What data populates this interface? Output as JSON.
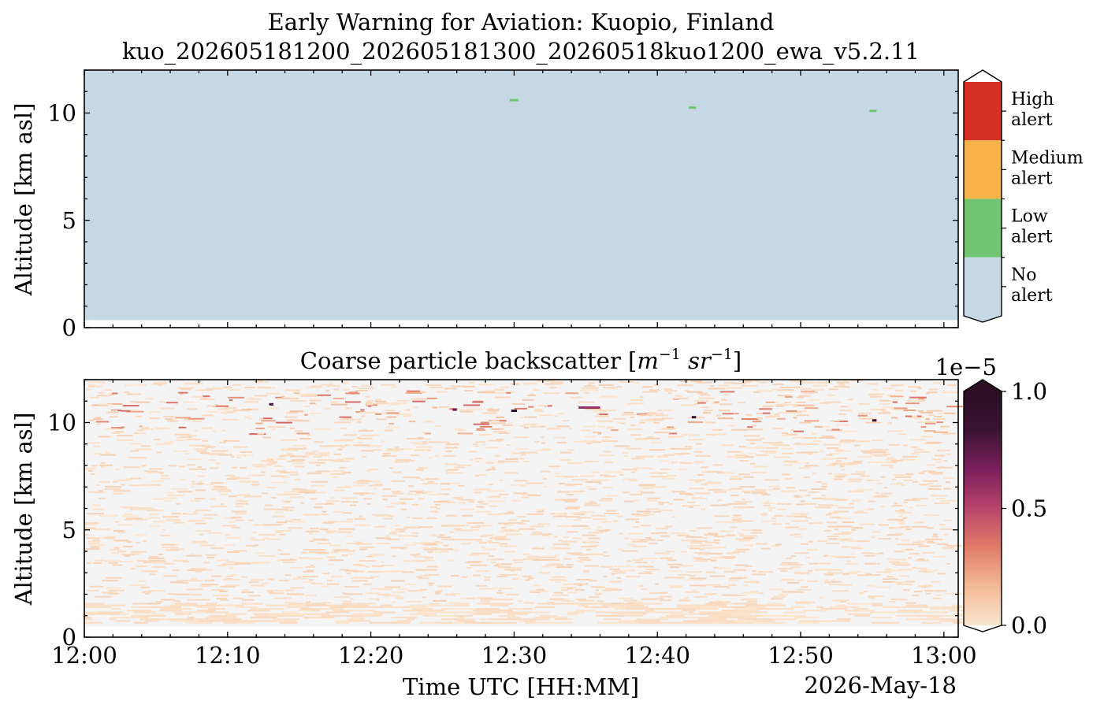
{
  "figure": {
    "title_line1": "Early Warning for Aviation: Kuopio, Finland",
    "title_line2": "kuo_202605181200_202605181300_20260518kuo1200_ewa_v5.2.11",
    "date_label": "2026-May-18"
  },
  "chart_data": [
    {
      "type": "heatmap",
      "name": "alert-panel",
      "ylabel": "Altitude [km asl]",
      "xlim_minutes": [
        0,
        61
      ],
      "ylim_km": [
        0,
        12
      ],
      "yticks": [
        {
          "v": 0,
          "label": "0"
        },
        {
          "v": 5,
          "label": "5"
        },
        {
          "v": 10,
          "label": "10"
        }
      ],
      "background_level": "No alert",
      "data_bottom_km": 0.35,
      "low_alert_segments": [
        {
          "time": "12:30",
          "start_min": 29.7,
          "end_min": 30.3,
          "alt_km": 10.6
        },
        {
          "time": "12:42",
          "start_min": 42.2,
          "end_min": 42.7,
          "alt_km": 10.25
        },
        {
          "time": "12:55",
          "start_min": 54.8,
          "end_min": 55.3,
          "alt_km": 10.1
        }
      ],
      "colorbar": {
        "levels": [
          {
            "label_line1": "High",
            "label_line2": "alert",
            "color": "#d73027"
          },
          {
            "label_line1": "Medium",
            "label_line2": "alert",
            "color": "#f7b34a"
          },
          {
            "label_line1": "Low",
            "label_line2": "alert",
            "color": "#71c572"
          },
          {
            "label_line1": "No",
            "label_line2": "alert",
            "color": "#c5d8e4"
          }
        ]
      }
    },
    {
      "type": "heatmap",
      "name": "backscatter-panel",
      "title": "Coarse particle backscatter [m⁻¹ sr⁻¹]",
      "title_main": "Coarse particle backscatter [",
      "title_m": "m",
      "title_exp1": "−1",
      "title_sr": " sr",
      "title_exp2": "−1",
      "title_end": "]",
      "xlabel": "Time UTC [HH:MM]",
      "ylabel": "Altitude [km asl]",
      "xlim_minutes": [
        0,
        61
      ],
      "ylim_km": [
        0,
        12
      ],
      "xticks": [
        {
          "v": 0,
          "label": "12:00"
        },
        {
          "v": 10,
          "label": "12:10"
        },
        {
          "v": 20,
          "label": "12:20"
        },
        {
          "v": 30,
          "label": "12:30"
        },
        {
          "v": 40,
          "label": "12:40"
        },
        {
          "v": 50,
          "label": "12:50"
        },
        {
          "v": 60,
          "label": "13:00"
        }
      ],
      "yticks": [
        {
          "v": 0,
          "label": "0"
        },
        {
          "v": 5,
          "label": "5"
        },
        {
          "v": 10,
          "label": "10"
        }
      ],
      "value_range": [
        0,
        1e-05
      ],
      "colorbar": {
        "offset_label": "1e−5",
        "ticks": [
          {
            "v": 0,
            "label": "0.0"
          },
          {
            "v": 0.5,
            "label": "0.5"
          },
          {
            "v": 1,
            "label": "1.0"
          }
        ],
        "colors": [
          "#fbe6cf",
          "#f2b995",
          "#e07c6a",
          "#b8456b",
          "#7c1f5e",
          "#3a1433",
          "#2c0e25"
        ]
      },
      "background_color": "#f4f4f4",
      "low_signal_band_km": [
        0.7,
        1.6
      ],
      "noise_top_km": 12,
      "strong_features": [
        {
          "time": "12:30",
          "start_min": 29.8,
          "end_min": 30.2,
          "alt_km": 10.55,
          "value": 0.95
        },
        {
          "time": "12:42",
          "start_min": 42.4,
          "end_min": 42.7,
          "alt_km": 10.25,
          "value": 0.9
        },
        {
          "time": "12:55",
          "start_min": 55.0,
          "end_min": 55.3,
          "alt_km": 10.1,
          "value": 0.85
        },
        {
          "time": "12:13",
          "start_min": 12.9,
          "end_min": 13.2,
          "alt_km": 10.85,
          "value": 0.8
        },
        {
          "time": "12:35",
          "start_min": 34.5,
          "end_min": 36.0,
          "alt_km": 10.7,
          "value": 0.6
        },
        {
          "time": "12:26",
          "start_min": 25.7,
          "end_min": 26.0,
          "alt_km": 10.6,
          "value": 0.7
        }
      ]
    }
  ]
}
